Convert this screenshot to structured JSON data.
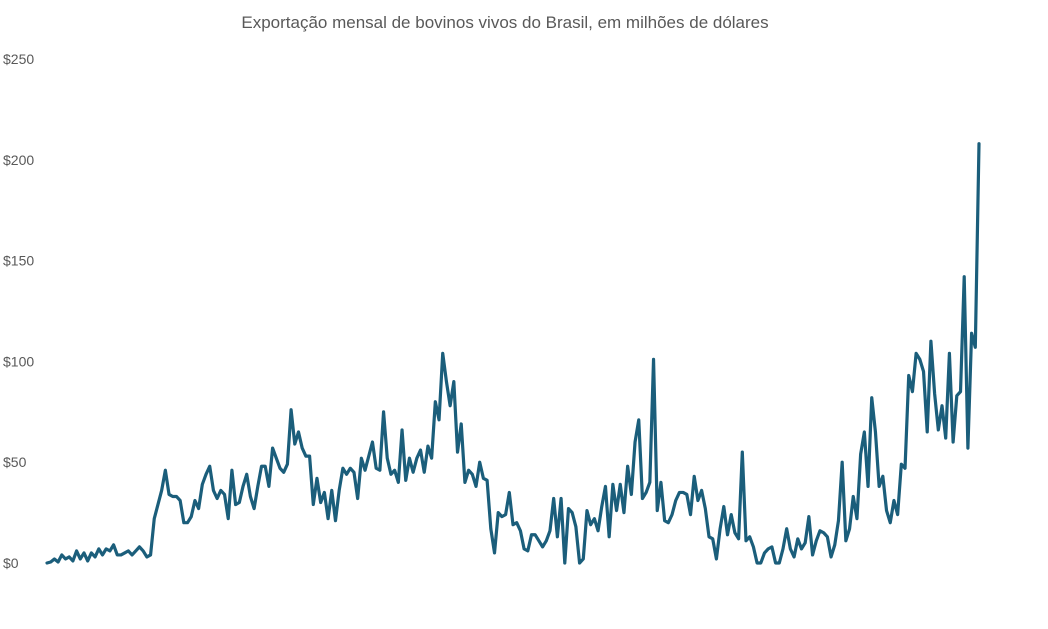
{
  "chart_data": {
    "type": "line",
    "title": "Exportação mensal de bovinos vivos do Brasil, em milhões de dólares",
    "xlabel": "",
    "ylabel": "",
    "ylim": [
      0,
      250
    ],
    "y_ticks": [
      {
        "value": 0,
        "label": "$0"
      },
      {
        "value": 50,
        "label": "$50"
      },
      {
        "value": 100,
        "label": "$100"
      },
      {
        "value": 150,
        "label": "$150"
      },
      {
        "value": 200,
        "label": "$200"
      },
      {
        "value": 250,
        "label": "$250"
      }
    ],
    "grid": false,
    "legend": "none",
    "color": "#1b5e7b",
    "series": [
      {
        "values": [
          0,
          0.5,
          2,
          0.5,
          4,
          2,
          3,
          1,
          6,
          2,
          5,
          1,
          5,
          3,
          7,
          4,
          7,
          6,
          9,
          4,
          4,
          5,
          6,
          4,
          6,
          8,
          6,
          3,
          4,
          22,
          29,
          36,
          46,
          34,
          33,
          33,
          31,
          20,
          20,
          23,
          31,
          27,
          39,
          44,
          48,
          36,
          32,
          36,
          34,
          22,
          46,
          29,
          30,
          38,
          44,
          33,
          27,
          38,
          48,
          48,
          38,
          57,
          52,
          47,
          45,
          49,
          76,
          59,
          65,
          57,
          53,
          53,
          29,
          42,
          30,
          35,
          22,
          36,
          21,
          36,
          47,
          44,
          47,
          45,
          32,
          52,
          46,
          53,
          60,
          47,
          46,
          75,
          52,
          44,
          46,
          40,
          66,
          41,
          52,
          45,
          52,
          56,
          45,
          58,
          52,
          80,
          71,
          104,
          90,
          78,
          90,
          55,
          69,
          40,
          46,
          44,
          38,
          50,
          42,
          41,
          17,
          5,
          25,
          23,
          24,
          35,
          19,
          20,
          16,
          7,
          6,
          14,
          14,
          11,
          8,
          11,
          16,
          32,
          13,
          32,
          0,
          27,
          25,
          18,
          0,
          2,
          26,
          19,
          22,
          16,
          28,
          38,
          13,
          39,
          26,
          39,
          25,
          48,
          34,
          60,
          71,
          32,
          35,
          40,
          101,
          26,
          40,
          21,
          20,
          24,
          31,
          35,
          35,
          34,
          24,
          43,
          31,
          36,
          27,
          13,
          12,
          2,
          17,
          28,
          14,
          24,
          15,
          12,
          55,
          11,
          13,
          8,
          0,
          0,
          5,
          7,
          8,
          0,
          0,
          7,
          17,
          7,
          3,
          12,
          7,
          10,
          23,
          4,
          11,
          16,
          15,
          13,
          3,
          9,
          21,
          50,
          11,
          17,
          33,
          22,
          54,
          65,
          38,
          82,
          65,
          38,
          43,
          26,
          20,
          31,
          24,
          49,
          47,
          93,
          85,
          104,
          101,
          95,
          65,
          110,
          84,
          66,
          78,
          62,
          104,
          60,
          83,
          85,
          142,
          57,
          114,
          107,
          208
        ]
      }
    ]
  }
}
